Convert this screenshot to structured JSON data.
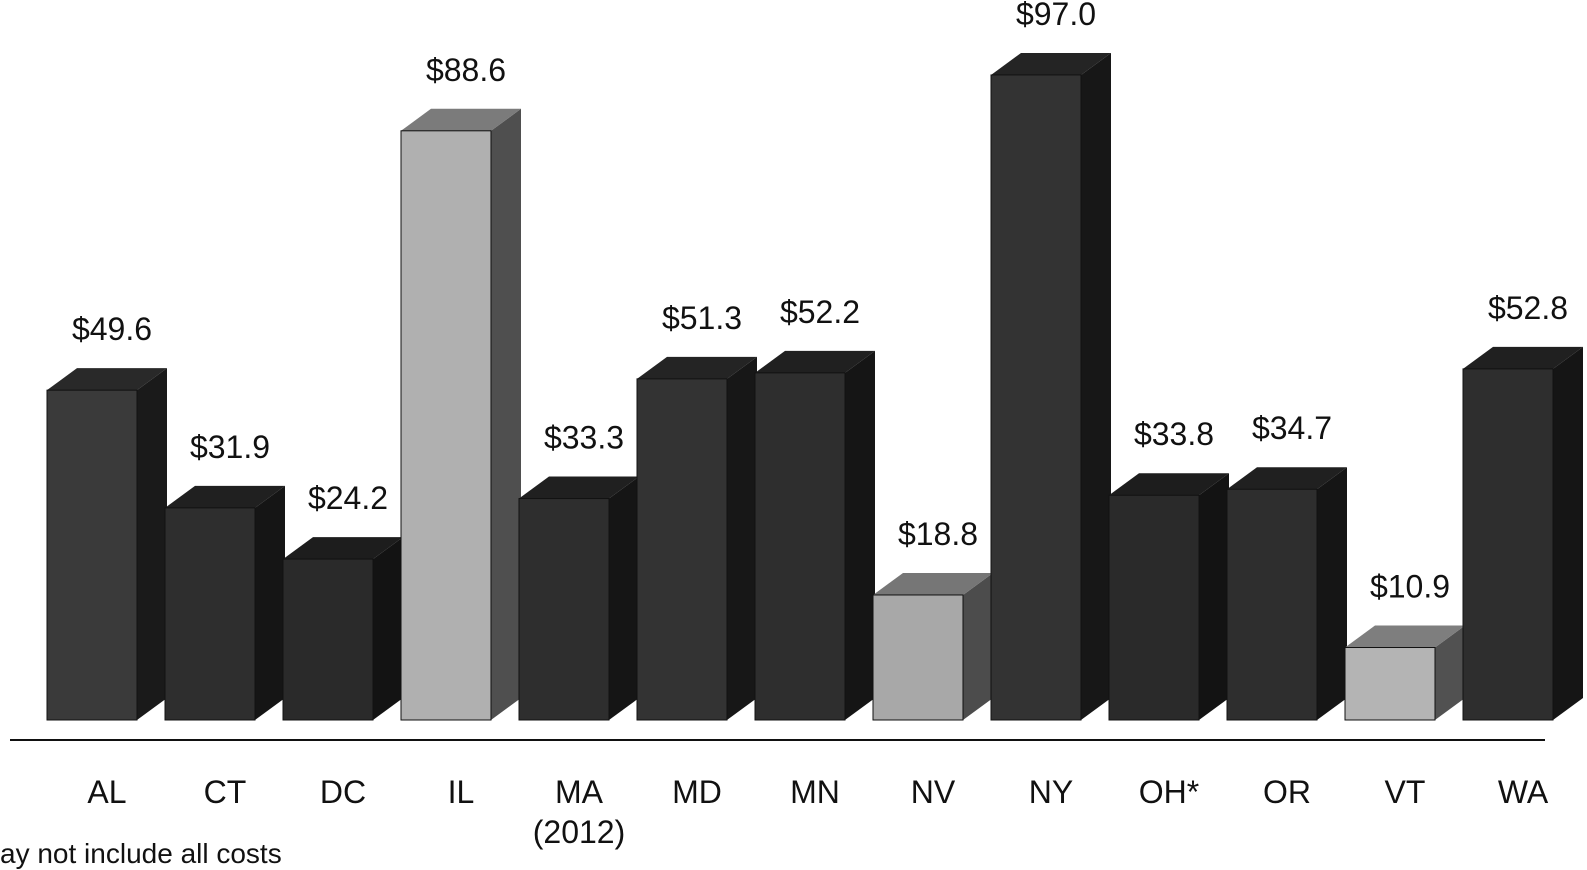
{
  "chart_data": {
    "type": "bar3d",
    "categories": [
      "AL",
      "CT",
      "DC",
      "IL",
      "MA (2012)",
      "MD",
      "MN",
      "NV",
      "NY",
      "OH*",
      "OR",
      "VT",
      "WA"
    ],
    "values": [
      49.6,
      31.9,
      24.2,
      88.6,
      33.3,
      51.3,
      52.2,
      18.8,
      97.0,
      33.8,
      34.7,
      10.9,
      52.8
    ],
    "value_labels": [
      "$49.6",
      "$31.9",
      "$24.2",
      "$88.6",
      "$33.3",
      "$51.3",
      "$52.2",
      "$18.8",
      "$97.0",
      "$33.8",
      "$34.7",
      "$10.9",
      "$52.8"
    ],
    "colors": [
      "#3a3a3a",
      "#2e2e2e",
      "#2a2a2a",
      "#b0b0b0",
      "#2e2e2e",
      "#333333",
      "#2e2e2e",
      "#a8a8a8",
      "#333333",
      "#2a2a2a",
      "#2e2e2e",
      "#b4b4b4",
      "#2e2e2e"
    ],
    "ylim": [
      0,
      100
    ],
    "footnote": "ay not include all costs"
  }
}
